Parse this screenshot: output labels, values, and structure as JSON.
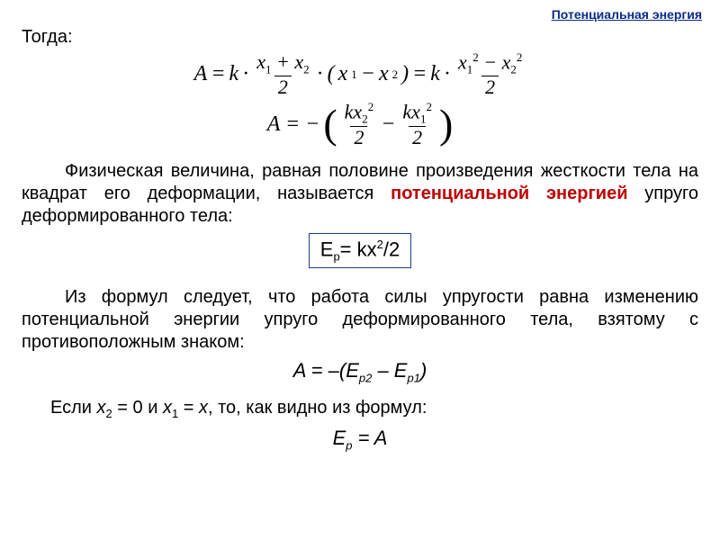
{
  "colors": {
    "link": "#0a2a8a",
    "highlight": "#c00000",
    "box_border": "#1f3a93",
    "text": "#000000"
  },
  "header": {
    "link_text": "Потенциальная энергия"
  },
  "then_label": "Тогда:",
  "equations": {
    "eq1": {
      "lhs": "A",
      "k": "k",
      "dot": "·",
      "frac1_num_a": "x",
      "frac1_num_a_sub": "1",
      "frac1_num_plus": " + ",
      "frac1_num_b": "x",
      "frac1_num_b_sub": "2",
      "frac1_den": "2",
      "mid_open": "(",
      "mid_a": "x",
      "mid_a_sub": "1",
      "mid_minus": " − ",
      "mid_b": "x",
      "mid_b_sub": "2",
      "mid_close": ")",
      "eq": " = ",
      "frac2_num_a": "x",
      "frac2_num_a_sub": "1",
      "frac2_num_a_sup": "2",
      "frac2_num_minus": " − ",
      "frac2_num_b": "x",
      "frac2_num_b_sub": "2",
      "frac2_num_b_sup": "2",
      "frac2_den": "2"
    },
    "eq2": {
      "lhs": "A = −",
      "f1_num": "kx",
      "f1_sub": "2",
      "f1_sup": "2",
      "f1_den": "2",
      "minus": " − ",
      "f2_num": "kx",
      "f2_sub": "1",
      "f2_sup": "2",
      "f2_den": "2"
    },
    "boxed": "E",
    "boxed_sub": "p",
    "boxed_rest": "= kx",
    "boxed_sup": "2",
    "boxed_tail": "/2",
    "work_eq": {
      "pre": "A = –(E",
      "s1": "p2",
      "mid": " – E",
      "s2": "p1",
      "post": ")"
    },
    "ep_eq": {
      "pre": "E",
      "sub": "p",
      "post": " = A"
    }
  },
  "para1": {
    "t1": "Физическая величина, равная половине произведения жесткости тела на квадрат его деформации, называется ",
    "h1": "потенциальной энергией",
    "t2": " упруго деформированного тела:"
  },
  "para2": "Из формул следует, что работа силы упругости равна изменению потенциальной энергии упруго деформированного тела, взятому с противоположным знаком:",
  "para3": {
    "t1": "Если ",
    "x2": "x",
    "x2_sub": "2",
    "t2": " = 0 и ",
    "x1": "x",
    "x1_sub": "1",
    "t3": " = ",
    "x": "x",
    "t4": ", то, как видно из формул:"
  }
}
